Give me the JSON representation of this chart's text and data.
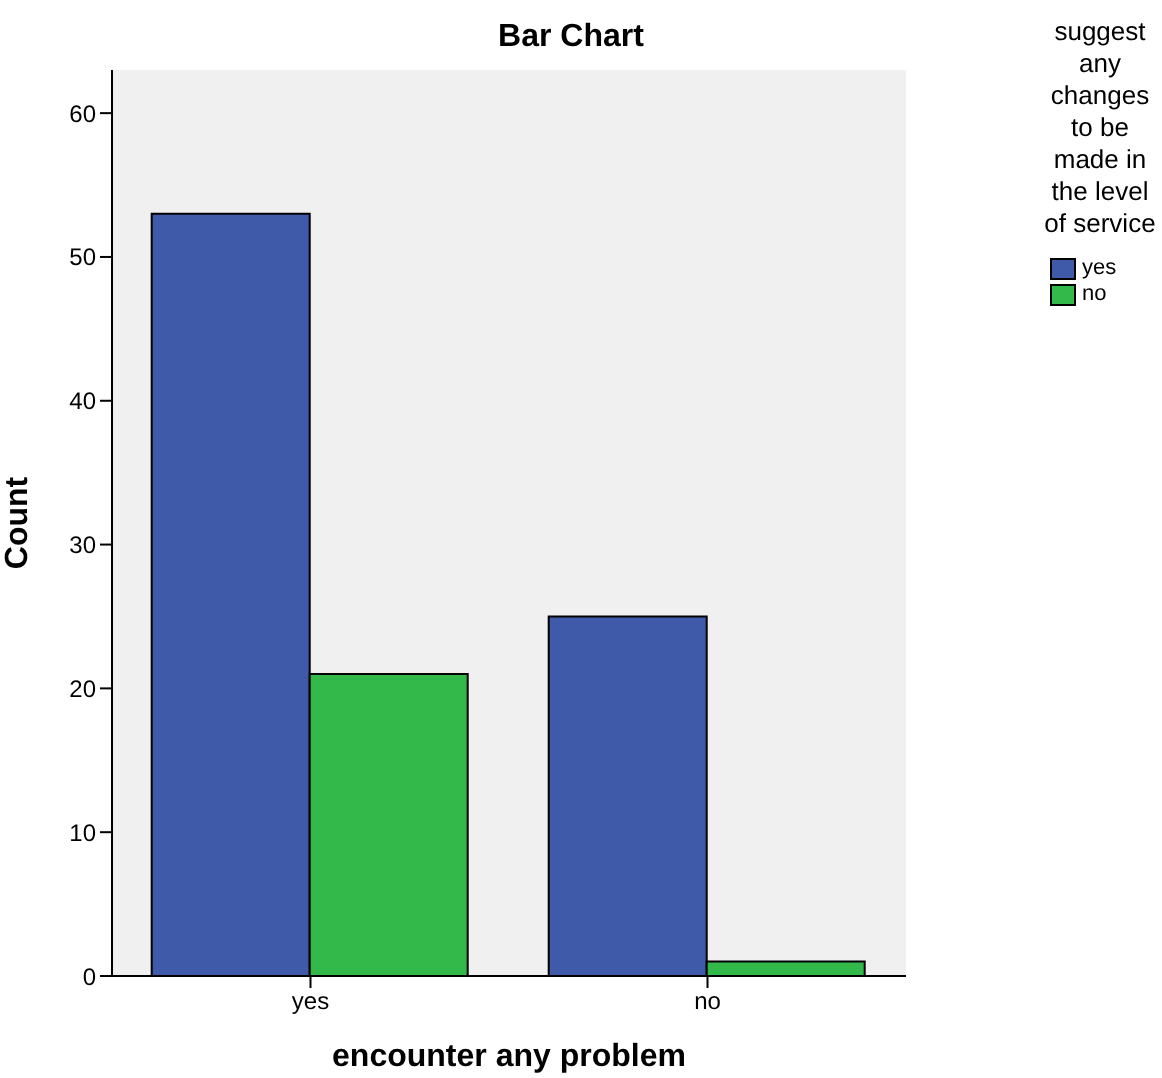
{
  "chart_data": {
    "type": "bar",
    "title": "Bar Chart",
    "xlabel": "encounter any problem",
    "ylabel": "Count",
    "legend_title": "suggest any changes to be made in the level of service",
    "categories": [
      "yes",
      "no"
    ],
    "series": [
      {
        "name": "yes",
        "color": "#3f5aa8",
        "values": [
          53,
          25
        ]
      },
      {
        "name": "no",
        "color": "#33b84a",
        "values": [
          21,
          1
        ]
      }
    ],
    "ylim": [
      0,
      63
    ],
    "yticks": [
      0,
      10,
      20,
      30,
      40,
      50,
      60
    ],
    "legend": "top right"
  }
}
